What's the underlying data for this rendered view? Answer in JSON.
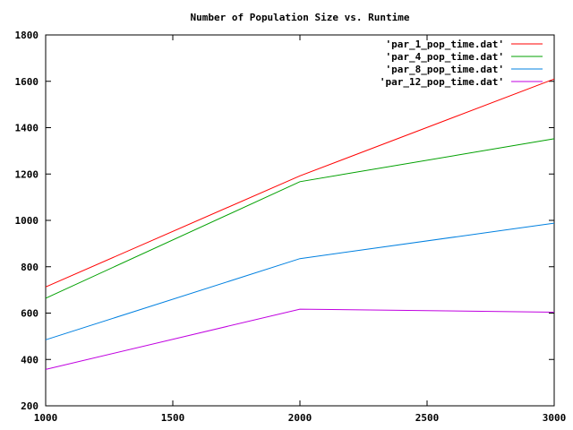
{
  "chart_data": {
    "type": "line",
    "title": "Number of Population Size vs. Runtime",
    "xlabel": "",
    "ylabel": "",
    "xlim": [
      1000,
      3000
    ],
    "ylim": [
      200,
      1800
    ],
    "xticks": [
      1000,
      1500,
      2000,
      2500,
      3000
    ],
    "yticks": [
      200,
      400,
      600,
      800,
      1000,
      1200,
      1400,
      1600,
      1800
    ],
    "grid": false,
    "legend_position": "top-right",
    "x": [
      1000,
      2000,
      3000
    ],
    "series": [
      {
        "name": "'par_1_pop_time.dat'",
        "color": "#ff0000",
        "values": [
          713,
          1192,
          1610
        ]
      },
      {
        "name": "'par_4_pop_time.dat'",
        "color": "#00a000",
        "values": [
          664,
          1167,
          1352
        ]
      },
      {
        "name": "'par_8_pop_time.dat'",
        "color": "#0080e0",
        "values": [
          485,
          835,
          988
        ]
      },
      {
        "name": "'par_12_pop_time.dat'",
        "color": "#c000e0",
        "values": [
          357,
          617,
          604
        ]
      }
    ]
  }
}
